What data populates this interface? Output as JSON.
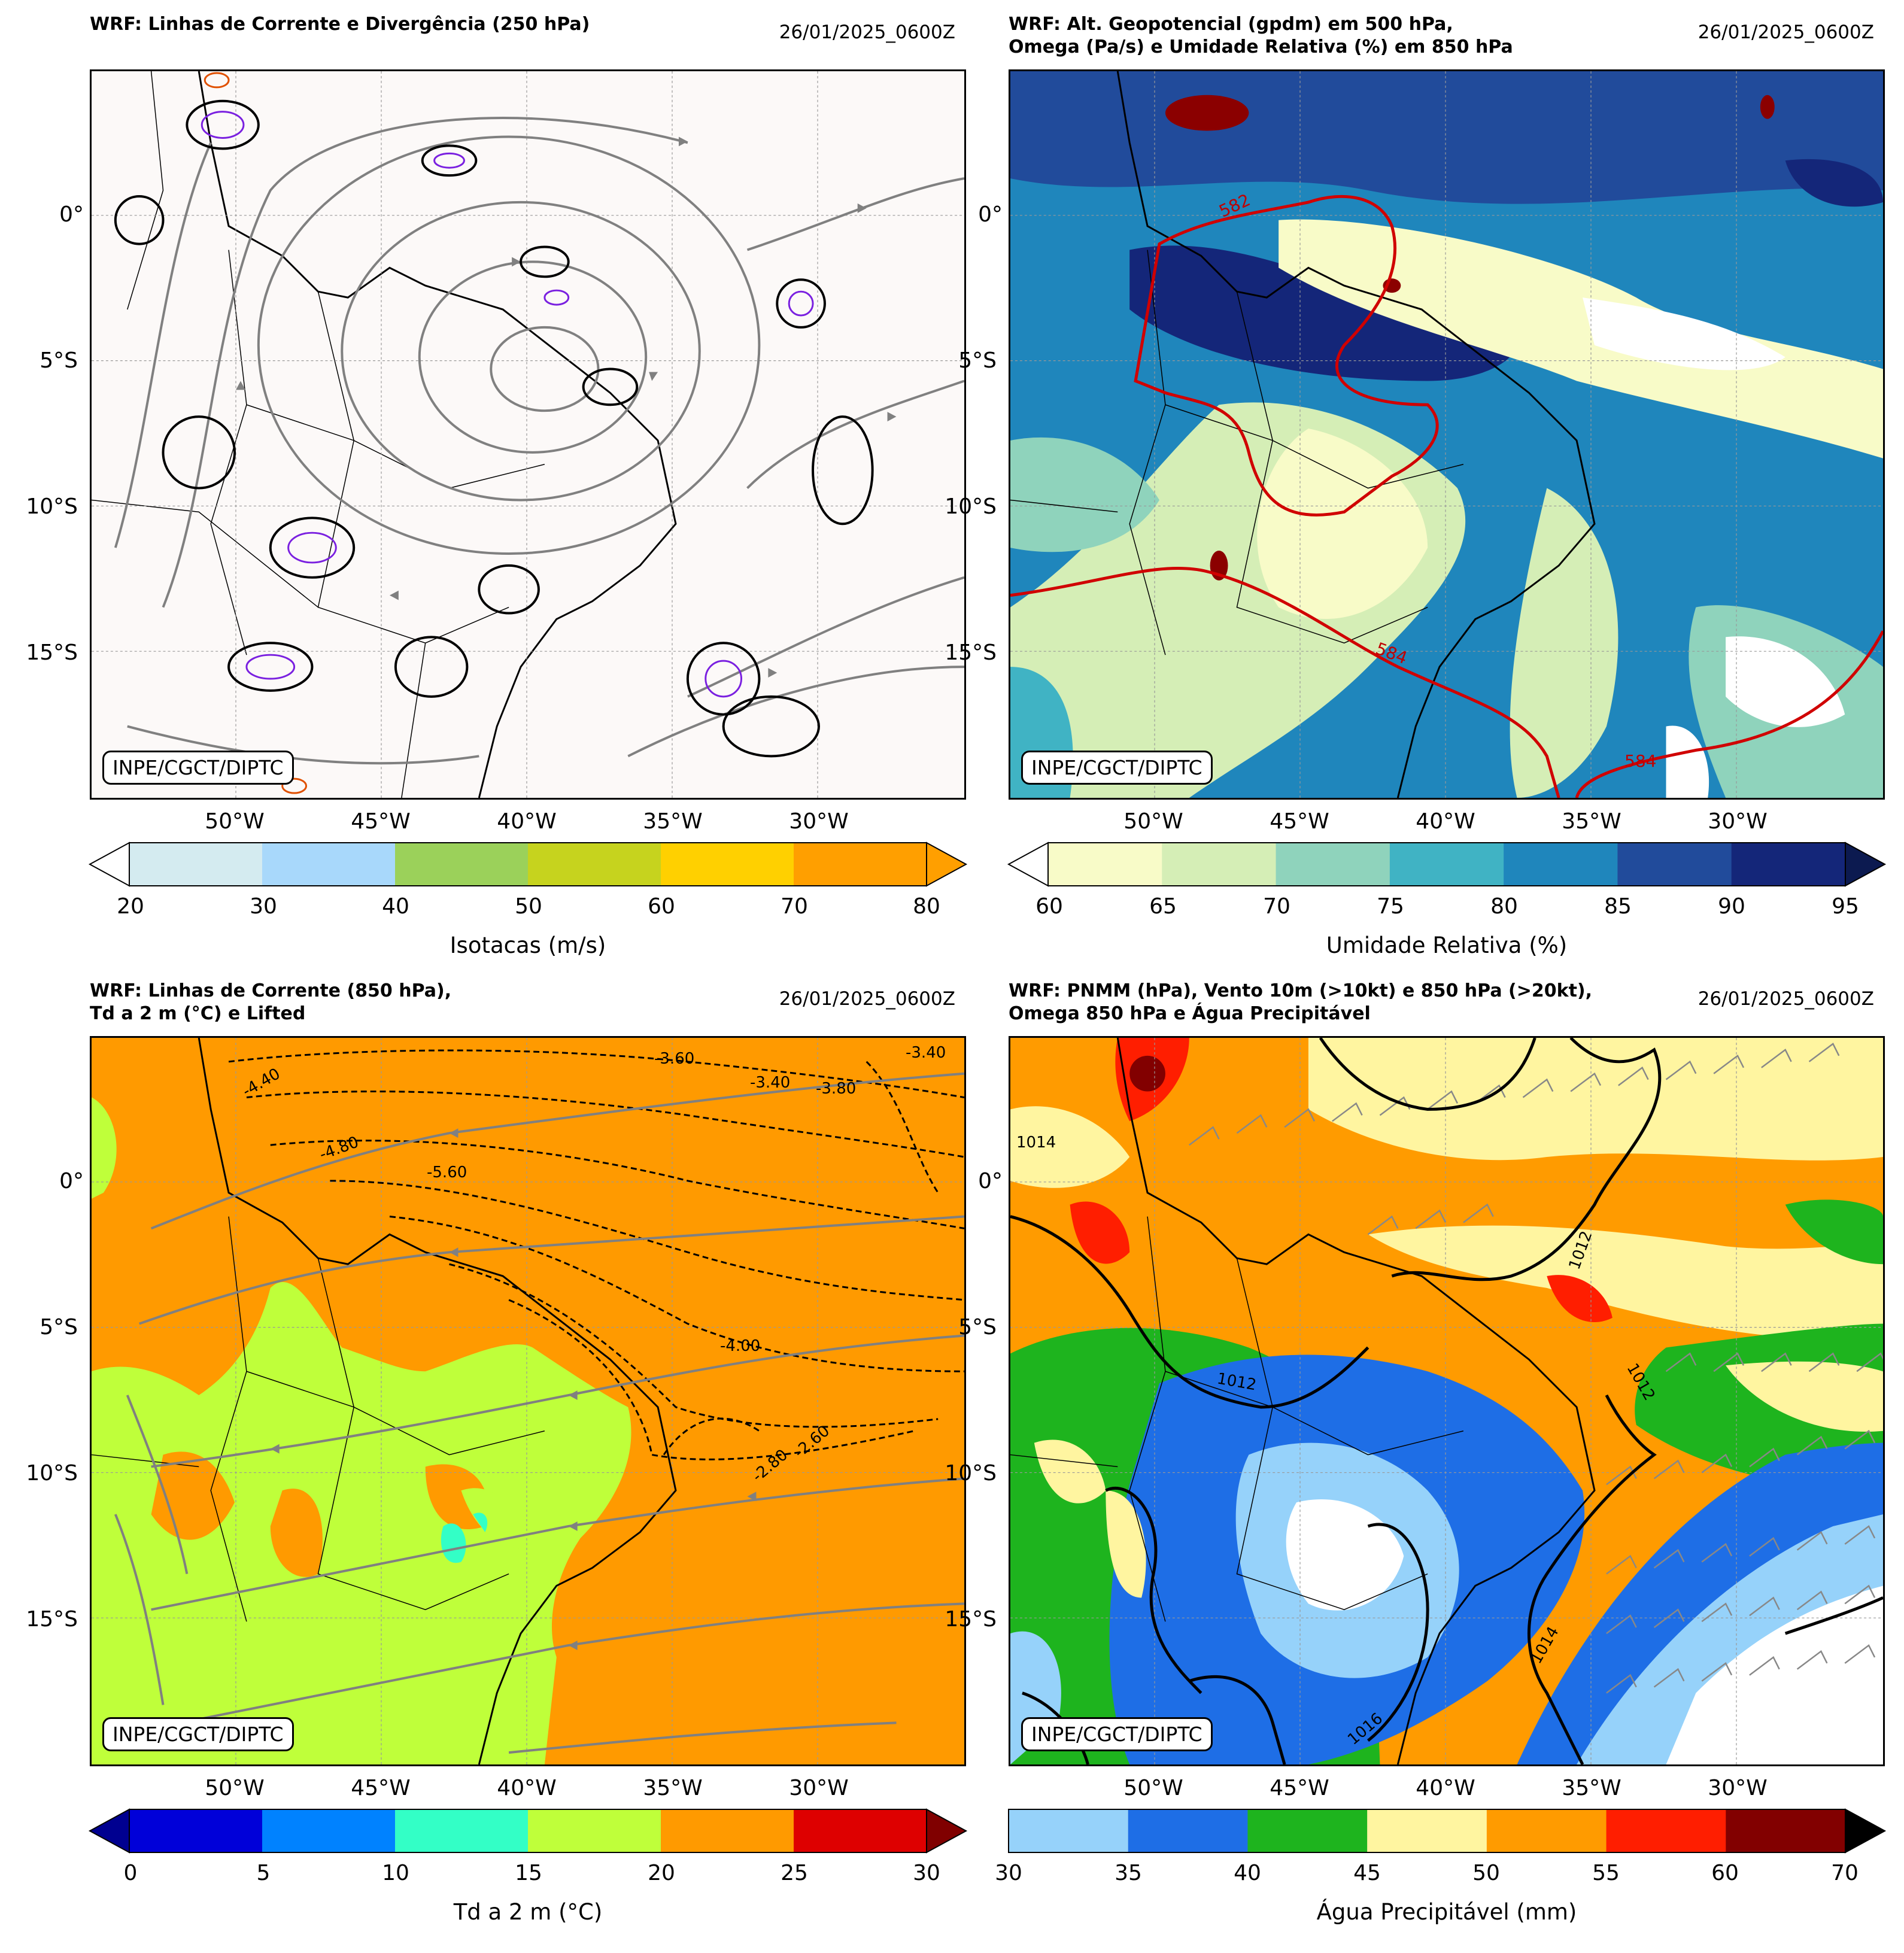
{
  "panels": [
    {
      "title": "WRF: Linhas de Corrente e Divergência (250 hPa)",
      "date": "26/01/2025_0600Z",
      "badge": "INPE/CGCT/DIPTC",
      "lat_labels": [
        "0°",
        "5°S",
        "10°S",
        "15°S"
      ],
      "lon_labels": [
        "50°W",
        "45°W",
        "40°W",
        "35°W",
        "30°W"
      ],
      "colorbar": {
        "label": "Isotacas (m/s)",
        "ticks": [
          "20",
          "30",
          "40",
          "50",
          "60",
          "70",
          "80"
        ],
        "colors": [
          "#d4ebf0",
          "#a8d8fb",
          "#9bd15a",
          "#c6d31e",
          "#ffd000",
          "#ff9f00"
        ],
        "extend_min_color": "#ffffff",
        "extend_max_color": "#ff9f00"
      }
    },
    {
      "title": "WRF: Alt. Geopotencial (gpdm) em 500 hPa,\nOmega (Pa/s) e Umidade Relativa (%) em 850 hPa",
      "date": "26/01/2025_0600Z",
      "badge": "INPE/CGCT/DIPTC",
      "lat_labels": [
        "0°",
        "5°S",
        "10°S",
        "15°S"
      ],
      "lon_labels": [
        "50°W",
        "45°W",
        "40°W",
        "35°W",
        "30°W"
      ],
      "contour_labels": [
        "582",
        "584",
        "584"
      ],
      "colorbar": {
        "label": "Umidade Relativa (%)",
        "ticks": [
          "60",
          "65",
          "70",
          "75",
          "80",
          "85",
          "90",
          "95"
        ],
        "colors": [
          "#f8fbc8",
          "#d5eeb6",
          "#8fd3bc",
          "#40b3c4",
          "#1f86bc",
          "#214b9b",
          "#142679"
        ],
        "extend_min_color": "#ffffff",
        "extend_max_color": "#0c1a50"
      }
    },
    {
      "title": "WRF: Linhas de Corrente (850 hPa),\nTd a 2 m (°C) e Lifted",
      "date": "26/01/2025_0600Z",
      "badge": "INPE/CGCT/DIPTC",
      "lat_labels": [
        "0°",
        "5°S",
        "10°S",
        "15°S"
      ],
      "lon_labels": [
        "50°W",
        "45°W",
        "40°W",
        "35°W",
        "30°W"
      ],
      "contour_labels": [
        "-4.40",
        "-4.80",
        "-5.60",
        "-3.60",
        "-3.40",
        "-3.80",
        "-4.00",
        "-2.60",
        "-3.40",
        "-2.80"
      ],
      "colorbar": {
        "label": "Td a 2 m (°C)",
        "ticks": [
          "0",
          "5",
          "10",
          "15",
          "20",
          "25",
          "30"
        ],
        "colors": [
          "#0000d9",
          "#0082ff",
          "#33ffc6",
          "#bfff3a",
          "#ff9a00",
          "#de0000"
        ],
        "extend_min_color": "#000090",
        "extend_max_color": "#800000"
      }
    },
    {
      "title": "WRF: PNMM (hPa), Vento 10m (>10kt) e 850 hPa (>20kt),\nOmega 850 hPa e Água Precipitável",
      "date": "26/01/2025_0600Z",
      "badge": "INPE/CGCT/DIPTC",
      "lat_labels": [
        "0°",
        "5°S",
        "10°S",
        "15°S"
      ],
      "lon_labels": [
        "50°W",
        "45°W",
        "40°W",
        "35°W",
        "30°W"
      ],
      "contour_labels": [
        "1012",
        "1012",
        "1012",
        "1014",
        "1016",
        "1014"
      ],
      "colorbar": {
        "label": "Água Precipitável (mm)",
        "ticks": [
          "30",
          "35",
          "40",
          "45",
          "50",
          "55",
          "60",
          "70"
        ],
        "colors": [
          "#96d2fa",
          "#1e6ee6",
          "#1eb41e",
          "#fff5a0",
          "#ff9b00",
          "#ff1e00",
          "#820000"
        ],
        "extend_min_color": null,
        "extend_max_color": "#000000"
      }
    }
  ]
}
